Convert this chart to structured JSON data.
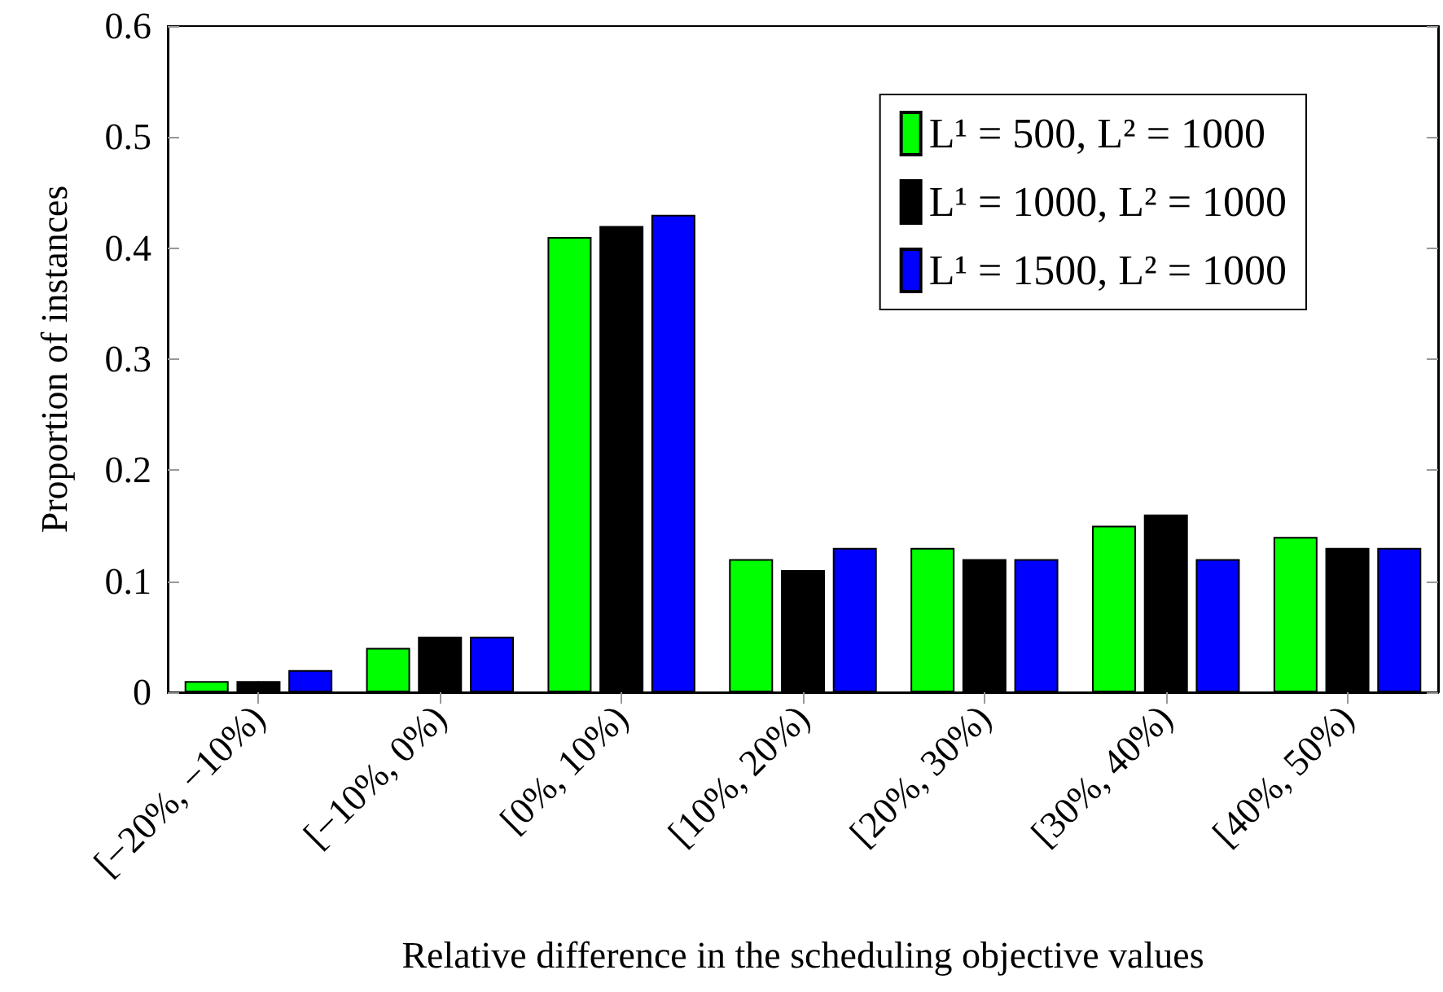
{
  "chart_data": {
    "type": "bar",
    "xlabel": "Relative difference in the scheduling objective values",
    "ylabel": "Proportion of instances",
    "categories": [
      "[−20%, −10%)",
      "[−10%, 0%)",
      "[0%, 10%)",
      "[10%, 20%)",
      "[20%, 30%)",
      "[30%, 40%)",
      "[40%, 50%)"
    ],
    "series": [
      {
        "name": "L¹ = 500, L² = 1000",
        "color": "#00ff00",
        "values": [
          0.01,
          0.04,
          0.41,
          0.12,
          0.13,
          0.15,
          0.14
        ]
      },
      {
        "name": "L¹ = 1000, L² = 1000",
        "color": "#000000",
        "values": [
          0.01,
          0.05,
          0.42,
          0.11,
          0.12,
          0.16,
          0.13
        ]
      },
      {
        "name": "L¹ = 1500, L² = 1000",
        "color": "#0000ff",
        "values": [
          0.02,
          0.05,
          0.43,
          0.13,
          0.12,
          0.12,
          0.13
        ]
      }
    ],
    "ylim": [
      0,
      0.6
    ],
    "yticks": [
      0,
      0.1,
      0.2,
      0.3,
      0.4,
      0.5,
      0.6
    ],
    "legend": "top right"
  }
}
